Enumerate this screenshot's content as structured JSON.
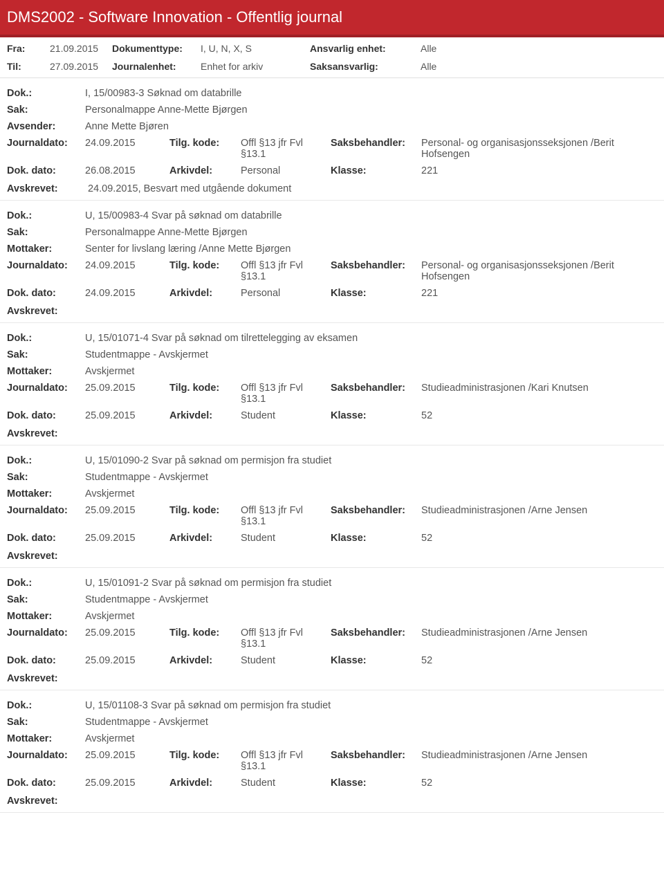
{
  "header": {
    "title": "DMS2002 - Software Innovation - Offentlig journal"
  },
  "filters": {
    "row1": {
      "l1": "Fra:",
      "v1": "21.09.2015",
      "l2": "Dokumenttype:",
      "v2": "I, U, N, X, S",
      "l3": "Ansvarlig enhet:",
      "v3": "Alle"
    },
    "row2": {
      "l1": "Til:",
      "v1": "27.09.2015",
      "l2": "Journalenhet:",
      "v2": "Enhet for arkiv",
      "l3": "Saksansvarlig:",
      "v3": "Alle"
    }
  },
  "entries": [
    {
      "dok": "I, 15/00983-3 Søknad om databrille",
      "sak": "Personalmappe Anne-Mette Bjørgen",
      "partyLabel": "Avsender:",
      "party": "Anne Mette Bjøren",
      "row1": {
        "jdato": "24.09.2015",
        "tilg": "Offl §13 jfr Fvl §13.1",
        "sblabel": "Saksbehandler:",
        "sb": "Personal- og organisasjonsseksjonen /Berit Hofsengen"
      },
      "row2": {
        "ddato": "26.08.2015",
        "arkiv": "Personal",
        "klabel": "Klasse:",
        "klasse": "221"
      },
      "avskrevet": "24.09.2015, Besvart med utgående dokument"
    },
    {
      "dok": "U, 15/00983-4 Svar på søknad om databrille",
      "sak": "Personalmappe Anne-Mette Bjørgen",
      "partyLabel": "Mottaker:",
      "party": "Senter for livslang læring /Anne Mette Bjørgen",
      "row1": {
        "jdato": "24.09.2015",
        "tilg": "Offl §13 jfr Fvl §13.1",
        "sblabel": "Saksbehandler:",
        "sb": "Personal- og organisasjonsseksjonen /Berit Hofsengen"
      },
      "row2": {
        "ddato": "24.09.2015",
        "arkiv": "Personal",
        "klabel": "Klasse:",
        "klasse": "221"
      },
      "avskrevet": ""
    },
    {
      "dok": "U, 15/01071-4 Svar på søknad om tilrettelegging av eksamen",
      "sak": "Studentmappe - Avskjermet",
      "partyLabel": "Mottaker:",
      "party": "Avskjermet",
      "row1": {
        "jdato": "25.09.2015",
        "tilg": "Offl §13 jfr Fvl §13.1",
        "sblabel": "Saksbehandler:",
        "sb": "Studieadministrasjonen /Kari Knutsen"
      },
      "row2": {
        "ddato": "25.09.2015",
        "arkiv": "Student",
        "klabel": "Klasse:",
        "klasse": "52"
      },
      "avskrevet": ""
    },
    {
      "dok": "U, 15/01090-2 Svar på søknad om permisjon fra studiet",
      "sak": "Studentmappe - Avskjermet",
      "partyLabel": "Mottaker:",
      "party": "Avskjermet",
      "row1": {
        "jdato": "25.09.2015",
        "tilg": "Offl §13 jfr Fvl §13.1",
        "sblabel": "Saksbehandler:",
        "sb": "Studieadministrasjonen /Arne Jensen"
      },
      "row2": {
        "ddato": "25.09.2015",
        "arkiv": "Student",
        "klabel": "Klasse:",
        "klasse": "52"
      },
      "avskrevet": ""
    },
    {
      "dok": "U, 15/01091-2 Svar på søknad om permisjon fra studiet",
      "sak": "Studentmappe - Avskjermet",
      "partyLabel": "Mottaker:",
      "party": "Avskjermet",
      "row1": {
        "jdato": "25.09.2015",
        "tilg": "Offl §13 jfr Fvl §13.1",
        "sblabel": "Saksbehandler:",
        "sb": "Studieadministrasjonen /Arne Jensen"
      },
      "row2": {
        "ddato": "25.09.2015",
        "arkiv": "Student",
        "klabel": "Klasse:",
        "klasse": "52"
      },
      "avskrevet": ""
    },
    {
      "dok": "U, 15/01108-3 Svar på søknad om permisjon fra studiet",
      "sak": "Studentmappe - Avskjermet",
      "partyLabel": "Mottaker:",
      "party": "Avskjermet",
      "row1": {
        "jdato": "25.09.2015",
        "tilg": "Offl §13 jfr Fvl §13.1",
        "sblabel": "Saksbehandler:",
        "sb": "Studieadministrasjonen /Arne Jensen"
      },
      "row2": {
        "ddato": "25.09.2015",
        "arkiv": "Student",
        "klabel": "Klasse:",
        "klasse": "52"
      },
      "avskrevet": ""
    }
  ],
  "labels": {
    "dok": "Dok.:",
    "sak": "Sak:",
    "journaldato": "Journaldato:",
    "tilgkode": "Tilg. kode:",
    "dokdato": "Dok. dato:",
    "arkivdel": "Arkivdel:",
    "avskrevet": "Avskrevet:"
  }
}
